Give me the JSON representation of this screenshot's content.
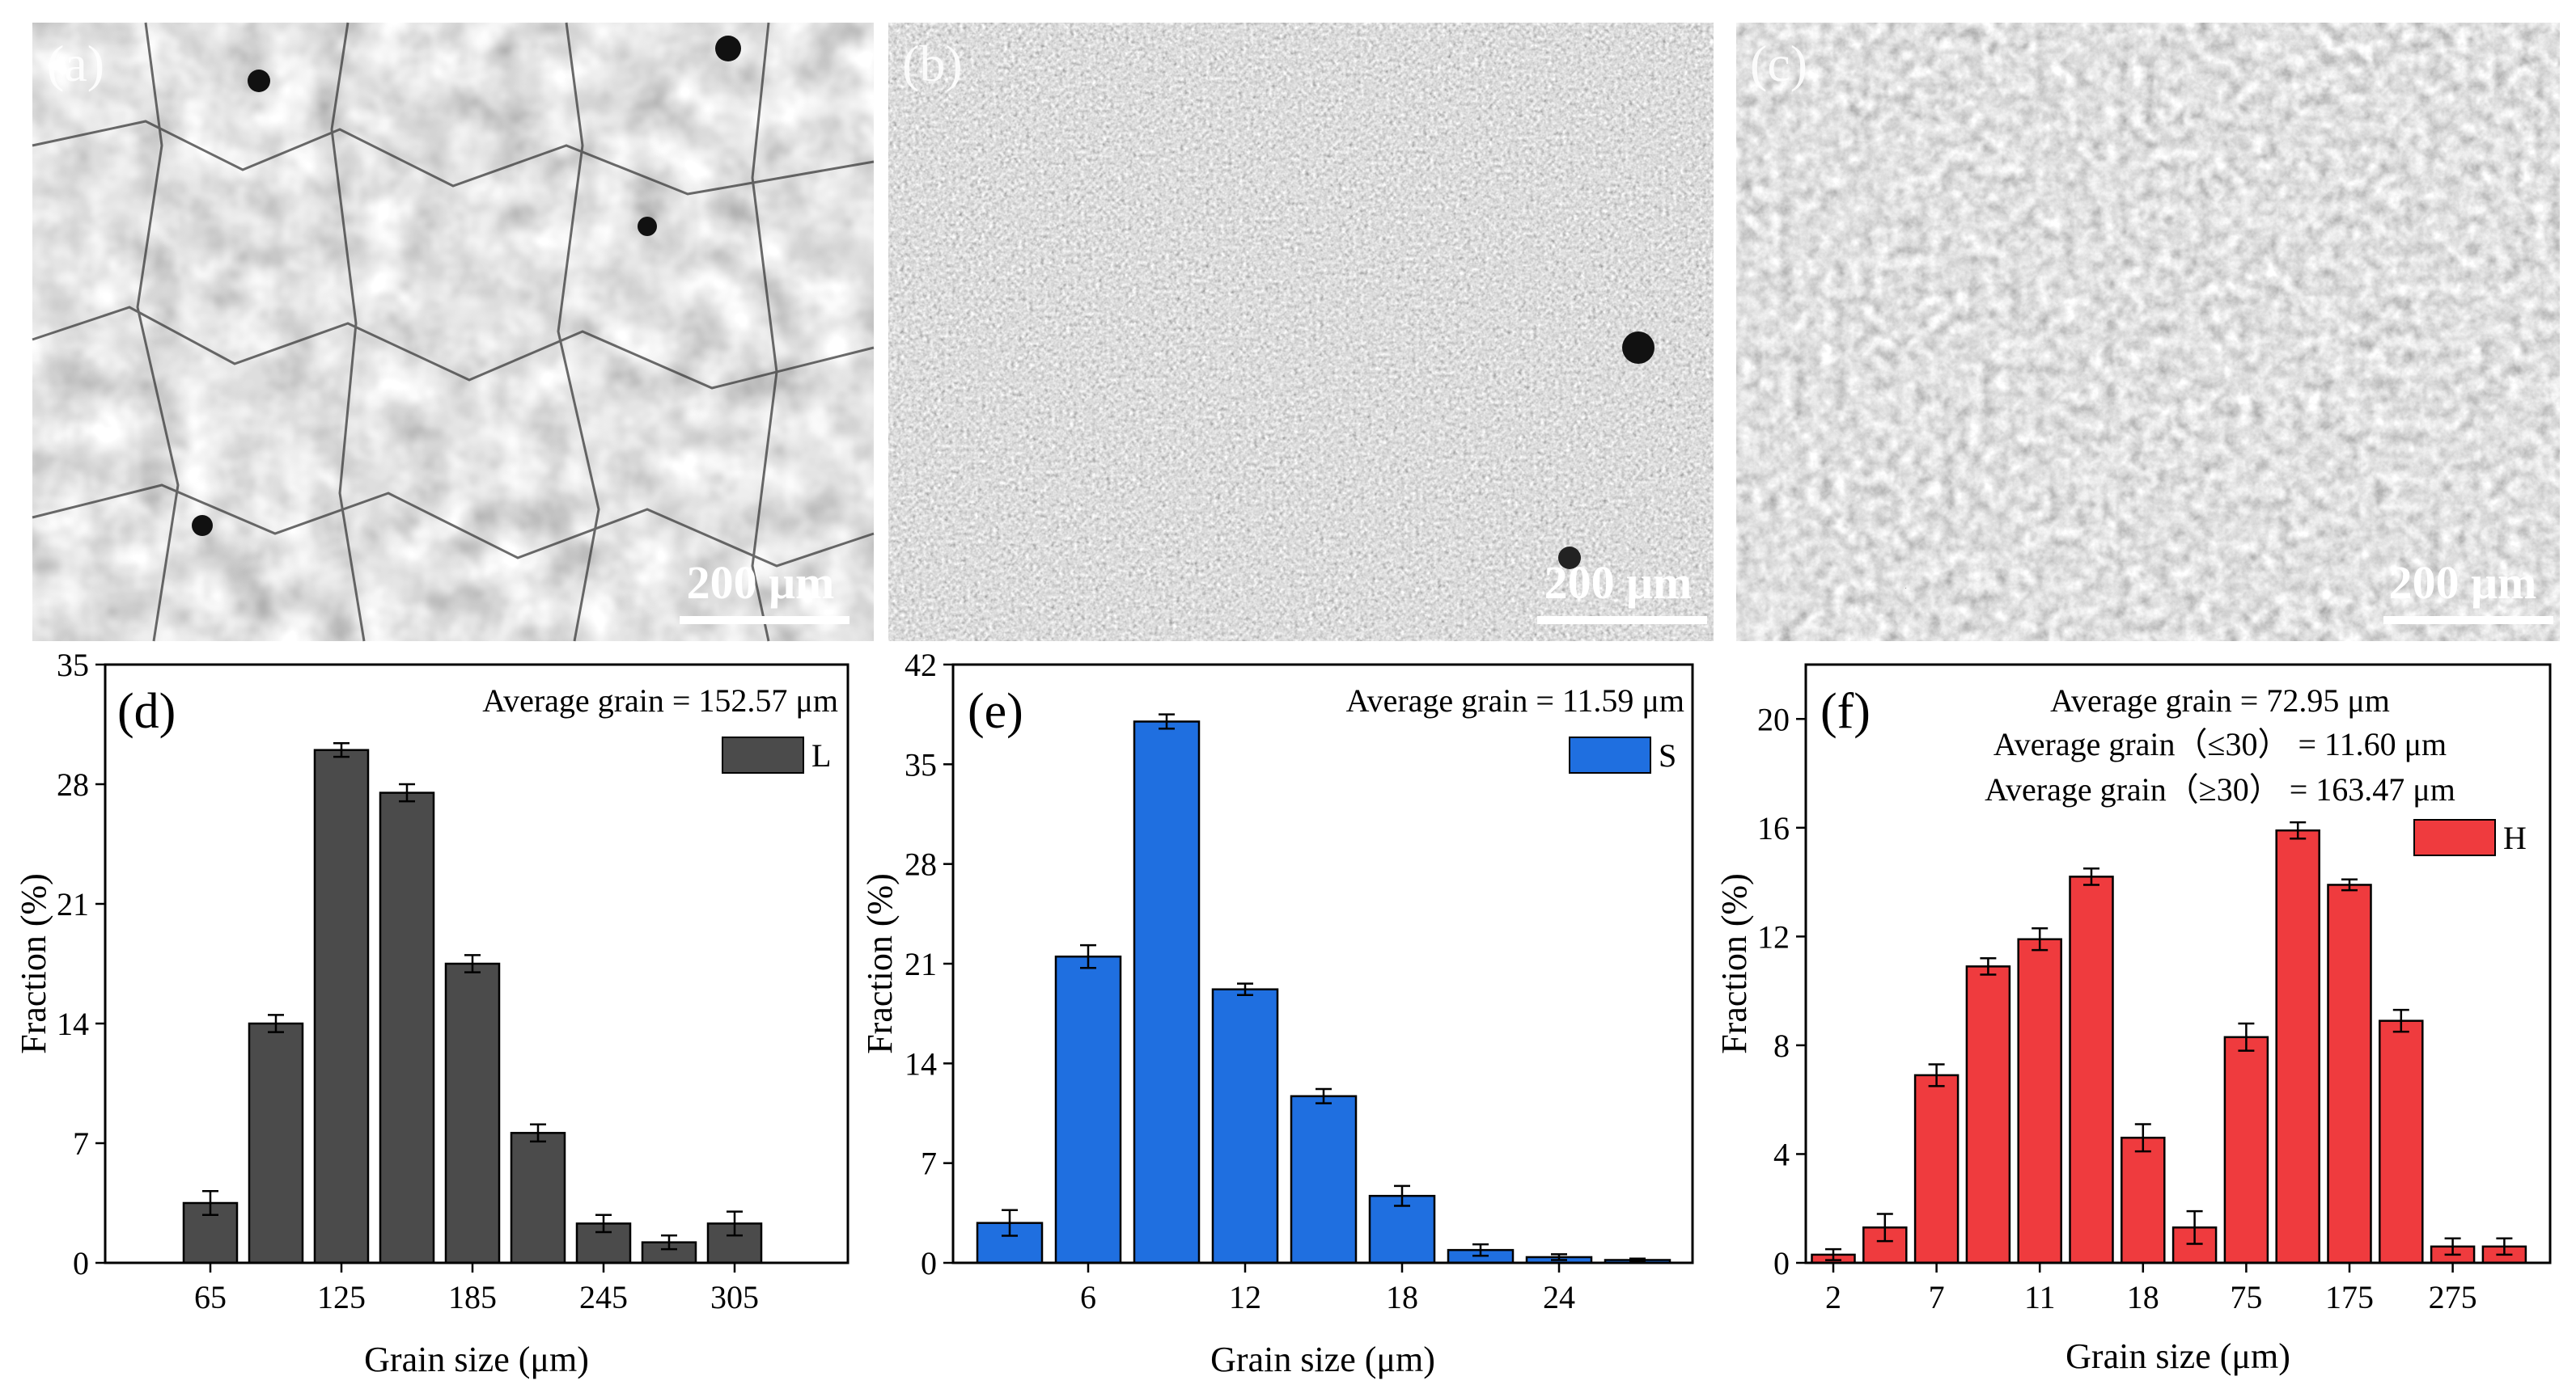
{
  "micrographs": [
    {
      "label": "(a)",
      "scale_text": "200 μm",
      "texture": "coarse"
    },
    {
      "label": "(b)",
      "scale_text": "200 μm",
      "texture": "fine"
    },
    {
      "label": "(c)",
      "scale_text": "200 μm",
      "texture": "mixed"
    }
  ],
  "colors": {
    "L": "#4b4b4b",
    "S": "#1f6fe0",
    "H": "#ef3b3e",
    "axis": "#000000"
  },
  "chart_data": [
    {
      "type": "bar",
      "panel": "(d)",
      "xlabel": "Grain size (μm)",
      "ylabel": "Fraction (%)",
      "ylim": [
        0,
        35
      ],
      "yticks": [
        0,
        7,
        14,
        21,
        28,
        35
      ],
      "xtick_labels": [
        "65",
        "125",
        "185",
        "245",
        "305"
      ],
      "xtick_positions": [
        0,
        2,
        4,
        6,
        8
      ],
      "values": [
        3.5,
        14.0,
        30.0,
        27.5,
        17.5,
        7.6,
        2.3,
        1.2,
        2.3
      ],
      "errors": [
        0.7,
        0.5,
        0.4,
        0.5,
        0.5,
        0.5,
        0.5,
        0.4,
        0.7
      ],
      "legend": "L",
      "annotations": [
        "Average grain = 152.57 μm"
      ]
    },
    {
      "type": "bar",
      "panel": "(e)",
      "xlabel": "Grain size (μm)",
      "ylabel": "Fraction (%)",
      "ylim": [
        0,
        42
      ],
      "yticks": [
        0,
        7,
        14,
        21,
        28,
        35,
        42
      ],
      "xtick_labels": [
        "6",
        "12",
        "18",
        "24"
      ],
      "xtick_positions": [
        1,
        3,
        5,
        7
      ],
      "values": [
        2.8,
        21.5,
        38.0,
        19.2,
        11.7,
        4.7,
        0.9,
        0.4,
        0.2
      ],
      "errors": [
        0.9,
        0.8,
        0.5,
        0.4,
        0.5,
        0.7,
        0.4,
        0.2,
        0.1
      ],
      "legend": "S",
      "annotations": [
        "Average grain = 11.59 μm"
      ]
    },
    {
      "type": "bar",
      "panel": "(f)",
      "xlabel": "Grain size (μm)",
      "ylabel": "Fraction (%)",
      "ylim": [
        0,
        22
      ],
      "yticks": [
        0,
        4,
        8,
        12,
        16,
        20
      ],
      "xtick_labels": [
        "2",
        "7",
        "11",
        "18",
        "75",
        "175",
        "275"
      ],
      "xtick_positions": [
        0,
        2,
        4,
        6,
        8,
        10,
        12
      ],
      "values": [
        0.3,
        1.3,
        6.9,
        10.9,
        11.9,
        14.2,
        4.6,
        1.3,
        8.3,
        15.9,
        13.9,
        8.9,
        0.6,
        0.6
      ],
      "errors": [
        0.2,
        0.5,
        0.4,
        0.3,
        0.4,
        0.3,
        0.5,
        0.6,
        0.5,
        0.3,
        0.2,
        0.4,
        0.3,
        0.3
      ],
      "legend": "H",
      "annotations": [
        "Average grain = 72.95 μm",
        "Average grain（≤30） = 11.60 μm",
        "Average grain（≥30） = 163.47 μm"
      ]
    }
  ]
}
